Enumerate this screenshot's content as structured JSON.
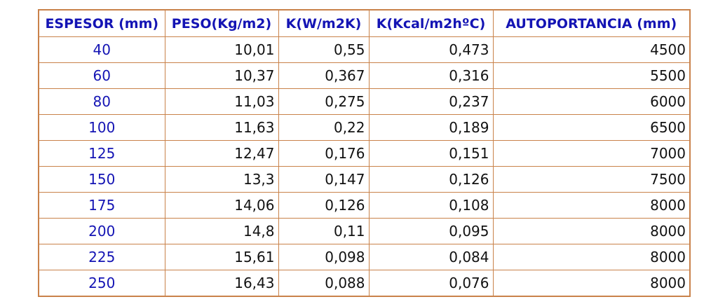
{
  "colors": {
    "border": "#c9824a",
    "header_text": "#1414b4",
    "thickness_text": "#1414b4",
    "value_text": "#111111",
    "background": "#ffffff"
  },
  "table": {
    "headers": [
      "ESPESOR (mm)",
      "PESO(Kg/m2)",
      "K(W/m2K)",
      "K(Kcal/m2hºC)",
      "AUTOPORTANCIA (mm)"
    ],
    "rows": [
      [
        "40",
        "10,01",
        "0,55",
        "0,473",
        "4500"
      ],
      [
        "60",
        "10,37",
        "0,367",
        "0,316",
        "5500"
      ],
      [
        "80",
        "11,03",
        "0,275",
        "0,237",
        "6000"
      ],
      [
        "100",
        "11,63",
        "0,22",
        "0,189",
        "6500"
      ],
      [
        "125",
        "12,47",
        "0,176",
        "0,151",
        "7000"
      ],
      [
        "150",
        "13,3",
        "0,147",
        "0,126",
        "7500"
      ],
      [
        "175",
        "14,06",
        "0,126",
        "0,108",
        "8000"
      ],
      [
        "200",
        "14,8",
        "0,11",
        "0,095",
        "8000"
      ],
      [
        "225",
        "15,61",
        "0,098",
        "0,084",
        "8000"
      ],
      [
        "250",
        "16,43",
        "0,088",
        "0,076",
        "8000"
      ]
    ]
  }
}
